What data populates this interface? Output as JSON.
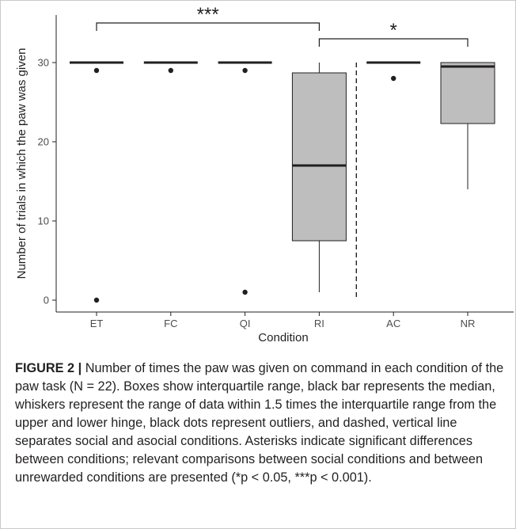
{
  "chart_data": {
    "type": "box",
    "xlabel": "Condition",
    "ylabel": "Number of trials in which the paw was given",
    "ylim": [
      -1.5,
      36
    ],
    "yticks": [
      0,
      10,
      20,
      30
    ],
    "categories": [
      "ET",
      "FC",
      "QI",
      "RI",
      "AC",
      "NR"
    ],
    "boxes": [
      {
        "category": "ET",
        "q1": 30,
        "median": 30,
        "q3": 30,
        "whisker_low": 30,
        "whisker_high": 30,
        "outliers": [
          29,
          0
        ]
      },
      {
        "category": "FC",
        "q1": 30,
        "median": 30,
        "q3": 30,
        "whisker_low": 30,
        "whisker_high": 30,
        "outliers": [
          29
        ]
      },
      {
        "category": "QI",
        "q1": 30,
        "median": 30,
        "q3": 30,
        "whisker_low": 30,
        "whisker_high": 30,
        "outliers": [
          29,
          1
        ]
      },
      {
        "category": "RI",
        "q1": 7.5,
        "median": 17,
        "q3": 28.7,
        "whisker_low": 1,
        "whisker_high": 30,
        "outliers": []
      },
      {
        "category": "AC",
        "q1": 30,
        "median": 30,
        "q3": 30,
        "whisker_low": 30,
        "whisker_high": 30,
        "outliers": [
          28
        ]
      },
      {
        "category": "NR",
        "q1": 22.3,
        "median": 29.5,
        "q3": 30,
        "whisker_low": 14,
        "whisker_high": 30,
        "outliers": []
      }
    ],
    "box_fill": "#bebebe",
    "separator": {
      "between": [
        "RI",
        "AC"
      ],
      "style": "dashed"
    },
    "significance": [
      {
        "from": "ET",
        "to": "RI",
        "y": 35,
        "label": "***"
      },
      {
        "from": "RI",
        "to": "NR",
        "y": 33,
        "label": "*"
      }
    ]
  },
  "caption": {
    "label": "FIGURE 2 |",
    "text": " Number of times the paw was given on command in each condition of the paw task (N = 22). Boxes show interquartile range, black bar represents the median, whiskers represent the range of data within 1.5 times the interquartile range from the upper and lower hinge, black dots represent outliers, and dashed, vertical line separates social and asocial conditions. Asterisks indicate significant differences between conditions; relevant comparisons between social conditions and between unrewarded conditions are presented (*p < 0.05, ***p < 0.001)."
  }
}
